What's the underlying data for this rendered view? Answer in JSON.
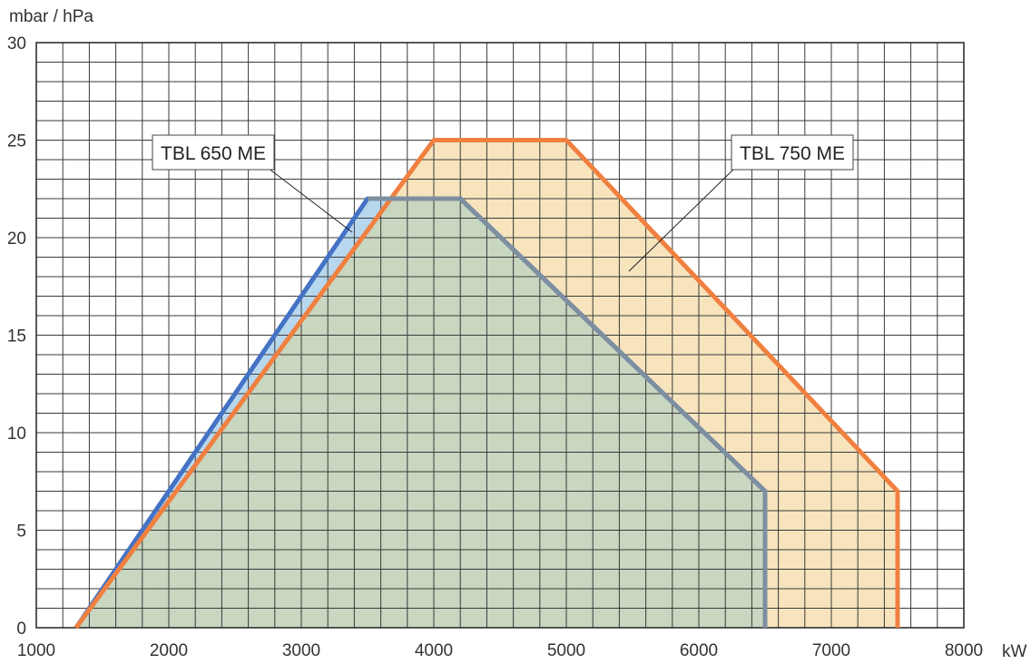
{
  "chart_data": {
    "type": "area",
    "ylabel": "mbar / hPa",
    "xlabel": "kW",
    "xlim": [
      1000,
      8000
    ],
    "ylim": [
      0,
      30
    ],
    "x_ticks": [
      1000,
      2000,
      3000,
      4000,
      5000,
      6000,
      7000,
      8000
    ],
    "y_ticks": [
      0,
      5,
      10,
      15,
      20,
      25,
      30
    ],
    "x_tick_labels": [
      "1000",
      "2000",
      "3000",
      "4000",
      "5000",
      "6000",
      "7000",
      "8000"
    ],
    "y_tick_labels": [
      "0",
      "5",
      "10",
      "15",
      "20",
      "25",
      "30"
    ],
    "grid": true,
    "series": [
      {
        "name": "TBL 650 ME",
        "color": "#4472c4",
        "fill": "#b7d7ee",
        "x": [
          1300,
          3500,
          4200,
          6500,
          6500
        ],
        "y": [
          0,
          22,
          22,
          7,
          0
        ]
      },
      {
        "name": "TBL 750 ME",
        "color": "#f08040",
        "fill": "#f7e4bd",
        "x": [
          1300,
          4000,
          5000,
          7500,
          7500
        ],
        "y": [
          0,
          25,
          25,
          7,
          0
        ]
      }
    ],
    "annotations": [
      {
        "text": "TBL 650 ME",
        "series": "TBL 650 ME"
      },
      {
        "text": "TBL 750 ME",
        "series": "TBL 750 ME"
      }
    ],
    "overlap_fill": "#c9d6c0"
  }
}
